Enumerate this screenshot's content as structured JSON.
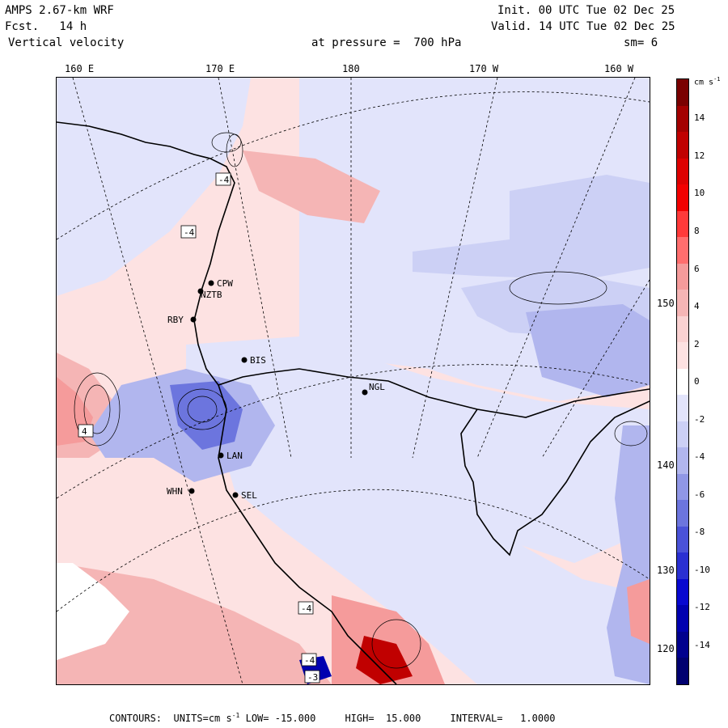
{
  "header": {
    "model": "AMPS 2.67-km WRF",
    "fcst": "Fcst.   14 h",
    "field": "Vertical velocity",
    "level": "at pressure =  700 hPa",
    "init": "Init. 00 UTC Tue 02 Dec 25",
    "valid": "Valid. 14 UTC Tue 02 Dec 25",
    "smooth": "sm= 6"
  },
  "lon_labels": [
    "160 E",
    "170 E",
    "180",
    "170 W",
    "160 W"
  ],
  "lat_labels": [
    "150 W",
    "140 W",
    "130 W",
    "120 W"
  ],
  "stations": [
    "CPW",
    "NZTB",
    "RBY",
    "BIS",
    "NGL",
    "LAN",
    "WHN",
    "SEL"
  ],
  "extrema_labels": [
    "-4",
    "-4",
    "-4",
    "4",
    "-4",
    "-3"
  ],
  "colorbar": {
    "unit": "cm s",
    "unit_exp": "-1",
    "labels": [
      "14",
      "12",
      "10",
      "8",
      "6",
      "4",
      "2",
      "0",
      "-2",
      "-4",
      "-6",
      "-8",
      "-10",
      "-12",
      "-14"
    ],
    "colors": [
      "#7a0000",
      "#a30000",
      "#c00000",
      "#dd0000",
      "#f20000",
      "#ff3a3a",
      "#ff6e6e",
      "#f59b9b",
      "#f5b5b5",
      "#fad2d2",
      "#fde2e2",
      "#ffffff",
      "#e2e4fb",
      "#ccd0f5",
      "#b1b6ee",
      "#9097e6",
      "#6c75de",
      "#4a52d8",
      "#2a30d2",
      "#0808d0",
      "#0000b0",
      "#00008e",
      "#000070"
    ]
  },
  "footer": {
    "contours": "CONTOURS:",
    "units": "UNITS=cm s",
    "units_exp": "-1",
    "low": "LOW= -15.000",
    "high": "HIGH=  15.000",
    "interval": "INTERVAL=   1.0000"
  }
}
